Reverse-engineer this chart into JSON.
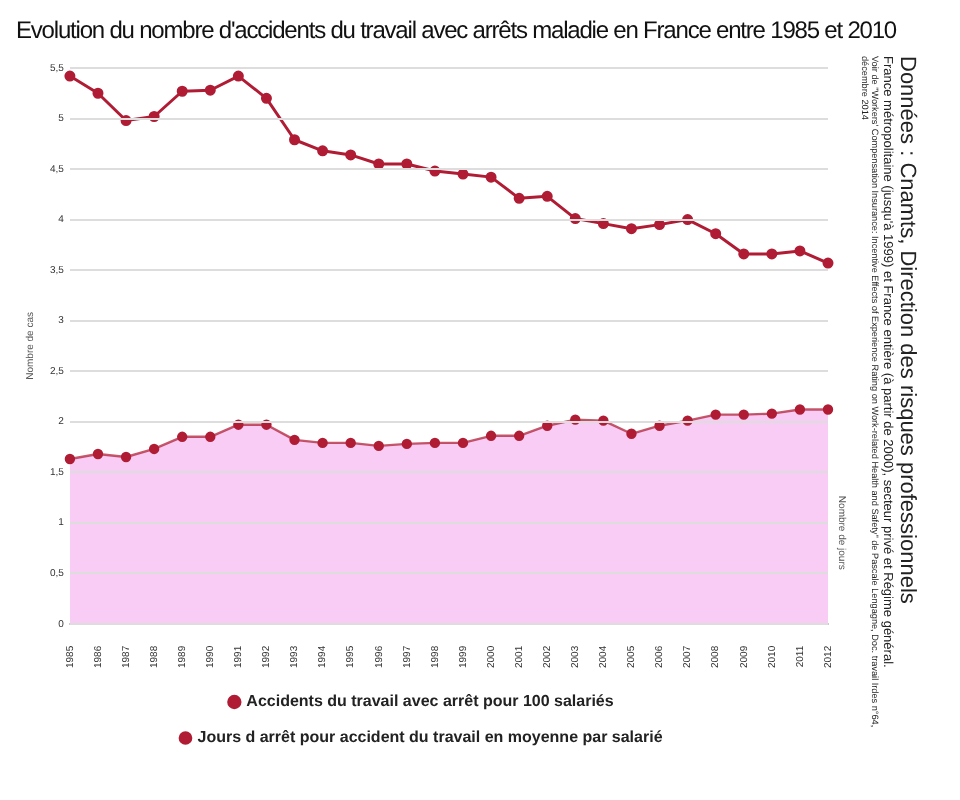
{
  "chart_data": {
    "type": "line",
    "title": "Evolution du nombre d'accidents du travail avec arrêts maladie en France entre 1985 et 2010",
    "ylabel": "Nombre de cas",
    "y2label": "Nombre de jours",
    "annotations": [
      "Données : Cnamts, Direction des risques professionnels",
      "France métropolitaine (jusqu'à 1999) et France entière (à partir de 2000), secteur privé et Régime général.",
      "Voir de \"Workers' Compensation Insurance: Incentive Effects of Experience Rating on Work-related Health and Safety\" de Pascale Lengagne, Doc. travail Irdes n°64, décembre 2014"
    ],
    "categories": [
      "1985",
      "1986",
      "1987",
      "1988",
      "1989",
      "1990",
      "1991",
      "1992",
      "1993",
      "1994",
      "1995",
      "1996",
      "1997",
      "1998",
      "1999",
      "2000",
      "2001",
      "2002",
      "2003",
      "2004",
      "2005",
      "2006",
      "2007",
      "2008",
      "2009",
      "2010",
      "2011",
      "2012"
    ],
    "series": [
      {
        "name": "Accidents du travail avec arrêt pour 100 salariés",
        "type": "line",
        "color": "#b01c34",
        "values": [
          5.42,
          5.25,
          4.98,
          5.02,
          5.27,
          5.28,
          5.42,
          5.2,
          4.79,
          4.68,
          4.64,
          4.55,
          4.55,
          4.48,
          4.45,
          4.42,
          4.21,
          4.23,
          4.01,
          3.96,
          3.91,
          3.95,
          4.0,
          3.86,
          3.66,
          3.66,
          3.69,
          3.57
        ]
      },
      {
        "name": "Jours d arrêt pour accident du travail en moyenne par salarié",
        "type": "area",
        "color": "#f8ccf4",
        "values": [
          1.63,
          1.68,
          1.65,
          1.73,
          1.85,
          1.85,
          1.97,
          1.97,
          1.82,
          1.79,
          1.79,
          1.76,
          1.78,
          1.79,
          1.79,
          1.86,
          1.86,
          1.96,
          2.02,
          2.01,
          1.88,
          1.96,
          2.01,
          2.07,
          2.07,
          2.08,
          2.12,
          2.12
        ]
      }
    ],
    "ylim": [
      0,
      5.5
    ],
    "yticks": [
      0,
      {
        "value": 0.5,
        "label": "0,5"
      },
      1,
      {
        "value": 1.5,
        "label": "1,5"
      },
      2,
      {
        "value": 2.5,
        "label": "2,5"
      },
      3,
      {
        "value": 3.5,
        "label": "3,5"
      },
      4,
      {
        "value": 4.5,
        "label": "4,5"
      },
      5,
      {
        "value": 5.5,
        "label": "5,5"
      }
    ],
    "grid": "y",
    "legend": "bottom",
    "marker": "circle"
  }
}
